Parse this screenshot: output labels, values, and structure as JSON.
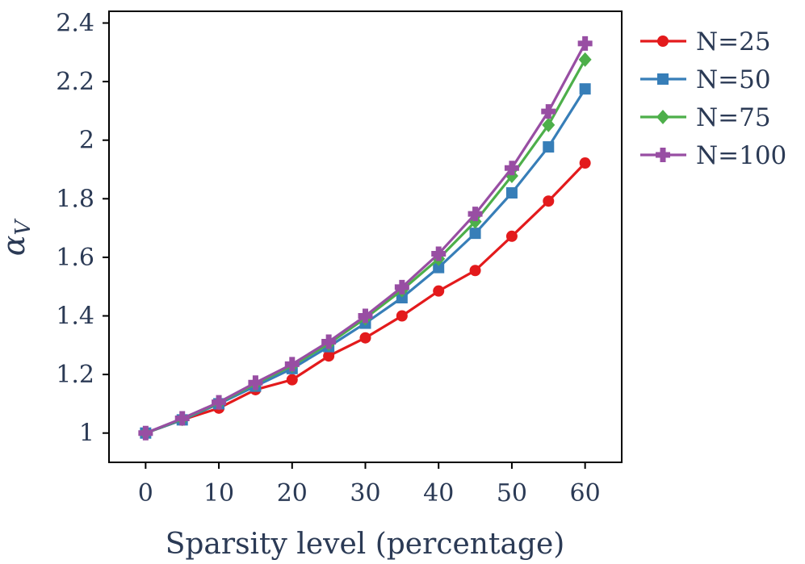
{
  "chart_data": {
    "type": "line",
    "title": "",
    "xlabel": "Sparsity level (percentage)",
    "ylabel": {
      "symbol": "α",
      "subscript": "V"
    },
    "xlim": [
      -5,
      65
    ],
    "ylim": [
      0.9,
      2.44
    ],
    "xticks": [
      0,
      10,
      20,
      30,
      40,
      50,
      60
    ],
    "xtick_labels": [
      "0",
      "10",
      "20",
      "30",
      "40",
      "50",
      "60"
    ],
    "yticks": [
      1,
      1.2,
      1.4,
      1.6,
      1.8,
      2,
      2.2,
      2.4
    ],
    "ytick_labels": [
      "1",
      "1.2",
      "1.4",
      "1.6",
      "1.8",
      "2",
      "2.2",
      "2.4"
    ],
    "grid": false,
    "legend_position": "outside-right-top",
    "x": [
      0,
      5,
      10,
      15,
      20,
      25,
      30,
      35,
      40,
      45,
      50,
      55,
      60
    ],
    "series": [
      {
        "name": "N=25",
        "color": "#e31a1c",
        "marker": "circle",
        "values": [
          1.0,
          1.045,
          1.085,
          1.148,
          1.182,
          1.263,
          1.325,
          1.4,
          1.485,
          1.555,
          1.672,
          1.792,
          1.922
        ]
      },
      {
        "name": "N=50",
        "color": "#377eb8",
        "marker": "square",
        "values": [
          1.0,
          1.045,
          1.1,
          1.16,
          1.22,
          1.295,
          1.375,
          1.462,
          1.565,
          1.682,
          1.82,
          1.977,
          2.175
        ]
      },
      {
        "name": "N=75",
        "color": "#4daf4a",
        "marker": "diamond",
        "values": [
          1.0,
          1.048,
          1.103,
          1.168,
          1.23,
          1.305,
          1.392,
          1.488,
          1.595,
          1.722,
          1.878,
          2.052,
          2.275
        ]
      },
      {
        "name": "N=100",
        "color": "#984ea3",
        "marker": "plus",
        "values": [
          1.0,
          1.05,
          1.105,
          1.172,
          1.235,
          1.312,
          1.4,
          1.498,
          1.612,
          1.748,
          1.905,
          2.098,
          2.33
        ]
      }
    ]
  }
}
